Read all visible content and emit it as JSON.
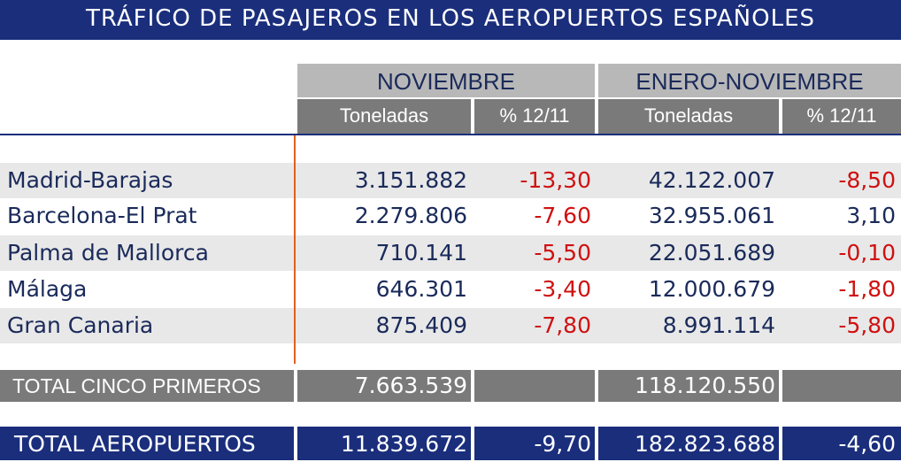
{
  "title": "TRÁFICO DE PASAJEROS EN LOS AEROPUERTOS ESPAÑOLES",
  "headers": {
    "group1": "NOVIEMBRE",
    "group2": "ENERO-NOVIEMBRE",
    "sub": [
      "Toneladas",
      "% 12/11",
      "Toneladas",
      "% 12/11"
    ]
  },
  "rows": [
    {
      "name": " Madrid-Barajas",
      "nov_t": "3.151.882",
      "nov_p": "-13,30",
      "en_t": "42.122.007",
      "en_p": "-8,50"
    },
    {
      "name": " Barcelona-El Prat",
      "nov_t": "2.279.806",
      "nov_p": "-7,60",
      "en_t": "32.955.061",
      "en_p": "3,10"
    },
    {
      "name": "Palma de Mallorca",
      "nov_t": "710.141",
      "nov_p": "-5,50",
      "en_t": "22.051.689",
      "en_p": "-0,10"
    },
    {
      "name": "Málaga",
      "nov_t": "646.301",
      "nov_p": "-3,40",
      "en_t": "12.000.679",
      "en_p": "-1,80"
    },
    {
      "name": "Gran Canaria",
      "nov_t": "875.409",
      "nov_p": "-7,80",
      "en_t": "8.991.114",
      "en_p": "-5,80"
    }
  ],
  "total5": {
    "label": "TOTAL CINCO PRIMEROS",
    "nov_t": "7.663.539",
    "en_t": "118.120.550"
  },
  "total": {
    "label": "TOTAL AEROPUERTOS",
    "nov_t": "11.839.672",
    "nov_p": "-9,70",
    "en_t": "182.823.688",
    "en_p": "-4,60"
  },
  "colors": {
    "navy": "#1a2e7c",
    "negative": "#d01010",
    "header_gray": "#b8b8b8",
    "subheader_gray": "#7a7a7a"
  },
  "chart_data": {
    "type": "table",
    "title": "TRÁFICO DE PASAJEROS EN LOS AEROPUERTOS ESPAÑOLES",
    "columns": [
      "NOVIEMBRE Toneladas",
      "NOVIEMBRE % 12/11",
      "ENERO-NOVIEMBRE Toneladas",
      "ENERO-NOVIEMBRE % 12/11"
    ],
    "categories": [
      "Madrid-Barajas",
      "Barcelona-El Prat",
      "Palma de Mallorca",
      "Málaga",
      "Gran Canaria",
      "TOTAL CINCO PRIMEROS",
      "TOTAL AEROPUERTOS"
    ],
    "series": [
      {
        "name": "NOVIEMBRE Toneladas",
        "values": [
          3151882,
          2279806,
          710141,
          646301,
          875409,
          7663539,
          11839672
        ]
      },
      {
        "name": "NOVIEMBRE % 12/11",
        "values": [
          -13.3,
          -7.6,
          -5.5,
          -3.4,
          -7.8,
          null,
          -9.7
        ]
      },
      {
        "name": "ENERO-NOVIEMBRE Toneladas",
        "values": [
          42122007,
          32955061,
          22051689,
          12000679,
          8991114,
          118120550,
          182823688
        ]
      },
      {
        "name": "ENERO-NOVIEMBRE % 12/11",
        "values": [
          -8.5,
          3.1,
          -0.1,
          -1.8,
          -5.8,
          null,
          -4.6
        ]
      }
    ]
  }
}
